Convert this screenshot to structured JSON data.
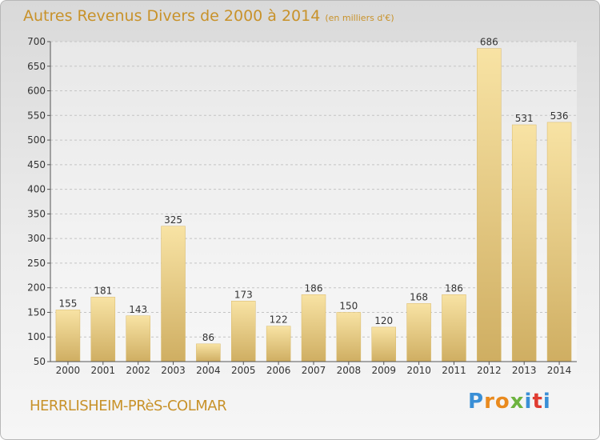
{
  "title": "Autres Revenus Divers de 2000 à 2014",
  "subtitle": "(en milliers d'€)",
  "place": "HERRLISHEIM-PRèS-COLMAR",
  "logo": {
    "letters": [
      "P",
      "r",
      "o",
      "x",
      "i",
      "t",
      "i"
    ],
    "colors": [
      "#3a8fd6",
      "#e98a1e",
      "#e98a1e",
      "#6db33f",
      "#3a8fd6",
      "#e03c31",
      "#3a8fd6"
    ]
  },
  "colors": {
    "accent": "#c8922a",
    "bar_light": "#f8e3a4",
    "bar_dark": "#cfae62"
  },
  "chart_data": {
    "type": "bar",
    "categories": [
      "2000",
      "2001",
      "2002",
      "2003",
      "2004",
      "2005",
      "2006",
      "2007",
      "2008",
      "2009",
      "2010",
      "2011",
      "2012",
      "2013",
      "2014"
    ],
    "values": [
      155,
      181,
      143,
      325,
      86,
      173,
      122,
      186,
      150,
      120,
      168,
      186,
      686,
      531,
      536
    ],
    "ylim": [
      50,
      700
    ],
    "yticks": [
      50,
      100,
      150,
      200,
      250,
      300,
      350,
      400,
      450,
      500,
      550,
      600,
      650,
      700
    ],
    "grid": true
  }
}
